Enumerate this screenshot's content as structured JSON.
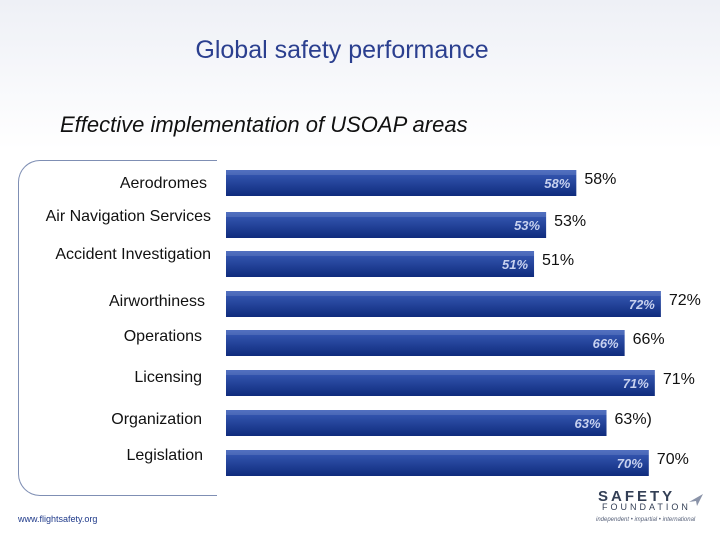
{
  "slide": {
    "title": "Global safety performance",
    "subtitle": "Effective implementation of USOAP areas",
    "footer_url": "www.flightsafety.org"
  },
  "logo": {
    "word": "SAFETY",
    "foundation": "FOUNDATION",
    "tagline": "independent • impartial • international"
  },
  "colors": {
    "bar_top": "#3a5db8",
    "bar_bottom": "#0f2b7d",
    "title": "#2b3f8f"
  },
  "chart_data": {
    "type": "bar",
    "orientation": "horizontal",
    "title": "Effective implementation of USOAP areas",
    "xlim": [
      0,
      100
    ],
    "categories": [
      "Aerodromes",
      "Air Navigation Services",
      "Accident Investigation",
      "Airworthiness",
      "Operations",
      "Licensing",
      "Organization",
      "Legislation"
    ],
    "values": [
      58,
      53,
      51,
      72,
      66,
      71,
      63,
      70
    ],
    "inner_labels": [
      "58%",
      "53%",
      "51%",
      "72%",
      "66%",
      "71%",
      "63%",
      "70%"
    ],
    "outer_labels": [
      "58%",
      "53%",
      "51%",
      "72%",
      "66%",
      "71%",
      "63%)",
      "70%"
    ]
  }
}
